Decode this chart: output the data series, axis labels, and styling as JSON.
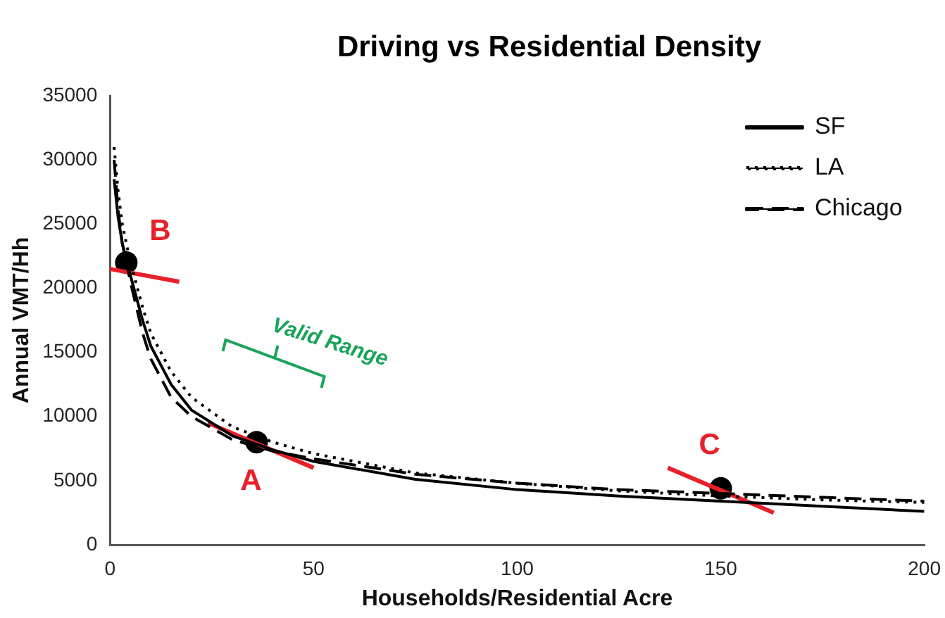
{
  "chart_data": {
    "type": "line",
    "title": "Driving vs Residential Density",
    "xlabel": "Households/Residential Acre",
    "ylabel": "Annual VMT/Hh",
    "xlim": [
      0,
      200
    ],
    "xticks": [
      0,
      50,
      100,
      150,
      200
    ],
    "ylim": [
      0,
      35000
    ],
    "yticks": [
      0,
      5000,
      10000,
      15000,
      20000,
      25000,
      30000,
      35000
    ],
    "grid": false,
    "legend": "top right",
    "marker": "none",
    "x": [
      1,
      2,
      3,
      5,
      8,
      10,
      15,
      20,
      30,
      40,
      50,
      75,
      100,
      125,
      150,
      175,
      200
    ],
    "series": [
      {
        "name": "SF",
        "color": "#000000",
        "line_style": "solid",
        "values": [
          28500,
          25500,
          23500,
          21000,
          17500,
          15500,
          12500,
          10500,
          8500,
          7400,
          6500,
          5100,
          4300,
          3800,
          3400,
          3000,
          2600
        ]
      },
      {
        "name": "LA",
        "color": "#000000",
        "line_style": "dotted",
        "values": [
          31000,
          27500,
          25000,
          22000,
          18500,
          16500,
          13500,
          11500,
          9200,
          8000,
          7100,
          5600,
          4800,
          4200,
          3800,
          3500,
          3300
        ]
      },
      {
        "name": "Chicago",
        "color": "#000000",
        "line_style": "dashed",
        "values": [
          30000,
          26000,
          23500,
          20500,
          16500,
          14500,
          11500,
          10000,
          8200,
          7300,
          6700,
          5500,
          4800,
          4300,
          4000,
          3700,
          3400
        ]
      },
      {
        "type": "line",
        "color": "#e8202a",
        "line_style": "solid",
        "x": [
          0,
          17
        ],
        "values": [
          21500,
          20500
        ]
      },
      {
        "type": "line",
        "color": "#e8202a",
        "line_style": "solid",
        "x": [
          24,
          50
        ],
        "values": [
          9500,
          6000
        ]
      },
      {
        "type": "line",
        "color": "#e8202a",
        "line_style": "solid",
        "x": [
          137,
          163
        ],
        "values": [
          6000,
          2500
        ]
      },
      {
        "type": "scatter",
        "color": "#000000",
        "marker": "circle",
        "x": [
          4,
          36,
          150
        ],
        "values": [
          22000,
          8000,
          4400
        ]
      }
    ],
    "annotations": [
      {
        "text": "B",
        "x": 4,
        "y": 22000
      },
      {
        "text": "A",
        "x": 36,
        "y": 8000
      },
      {
        "text": "C",
        "x": 150,
        "y": 4400
      },
      "Valid Range"
    ]
  }
}
